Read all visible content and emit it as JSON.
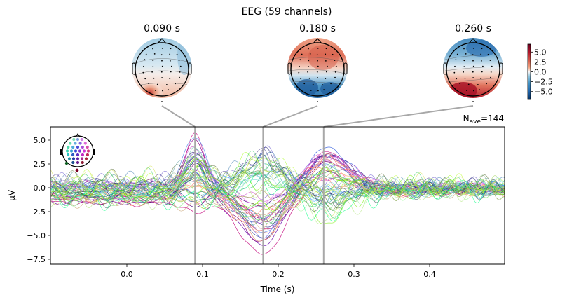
{
  "chart_data": {
    "type": "line",
    "title": "EEG (59 channels)",
    "xlabel": "Time (s)",
    "ylabel": "µV",
    "xlim": [
      -0.1,
      0.5
    ],
    "ylim": [
      -8.0,
      6.5
    ],
    "xticks": [
      0.0,
      0.1,
      0.2,
      0.3,
      0.4
    ],
    "xtick_labels": [
      "0.0",
      "0.1",
      "0.2",
      "0.3",
      "0.4"
    ],
    "yticks": [
      5.0,
      2.5,
      0.0,
      -2.5,
      -5.0,
      -7.5
    ],
    "ytick_labels": [
      "5.0",
      "2.5",
      "0.0",
      "−2.5",
      "−5.0",
      "−7.5"
    ],
    "n_channels": 59,
    "nave_label": "N",
    "nave_sub": "ave",
    "nave_value": "=144",
    "grid": false,
    "legend": "sensor-location inset, top-left",
    "highlight_times": [
      0.09,
      0.18,
      0.26
    ],
    "series_description": "59 butterfly traces colored by sensor location; peaks near 0.09 s (~+3.5 µV), 0.18 s (up to ~+4.8 / down to ~-7.3 µV), 0.26 s (up to ~+5.7 / down to ~-4.5 µV)",
    "envelope": {
      "t": [
        -0.1,
        -0.05,
        0.0,
        0.05,
        0.07,
        0.09,
        0.11,
        0.13,
        0.15,
        0.18,
        0.21,
        0.23,
        0.26,
        0.29,
        0.32,
        0.36,
        0.4,
        0.45,
        0.5
      ],
      "max": [
        1.6,
        2.6,
        3.0,
        2.7,
        1.6,
        3.5,
        1.6,
        1.5,
        3.0,
        4.8,
        3.8,
        1.0,
        5.7,
        4.3,
        2.5,
        1.8,
        1.8,
        2.0,
        2.2
      ],
      "min": [
        -2.2,
        -1.8,
        -2.2,
        -2.0,
        -2.6,
        -2.3,
        -1.2,
        -2.5,
        -5.0,
        -7.3,
        -4.6,
        -1.5,
        -3.8,
        -4.5,
        -2.8,
        -2.5,
        -1.8,
        -1.5,
        -1.3
      ]
    },
    "topomaps": [
      {
        "time_label": "0.090 s",
        "time": 0.09,
        "pattern": "posterior positive (left-occipital max ~+6), frontal mildly negative"
      },
      {
        "time_label": "0.180 s",
        "time": 0.18,
        "pattern": "frontal/central positive, occipital strongly negative"
      },
      {
        "time_label": "0.260 s",
        "time": 0.26,
        "pattern": "frontal negative, occipital strongly positive"
      }
    ],
    "colorbar": {
      "ticks": [
        5.0,
        2.5,
        0.0,
        -2.5,
        -5.0
      ],
      "tick_labels": [
        "5.0",
        "2.5",
        "0.0",
        "−2.5",
        "−5.0"
      ],
      "range": [
        -7.0,
        7.0
      ],
      "cmap": "RdBu_r"
    }
  },
  "colors": {
    "guide_line": "#a8a8a8",
    "cmap_red": "#b2182b",
    "cmap_blue": "#2166ac",
    "cmap_white": "#f7f7f7"
  }
}
